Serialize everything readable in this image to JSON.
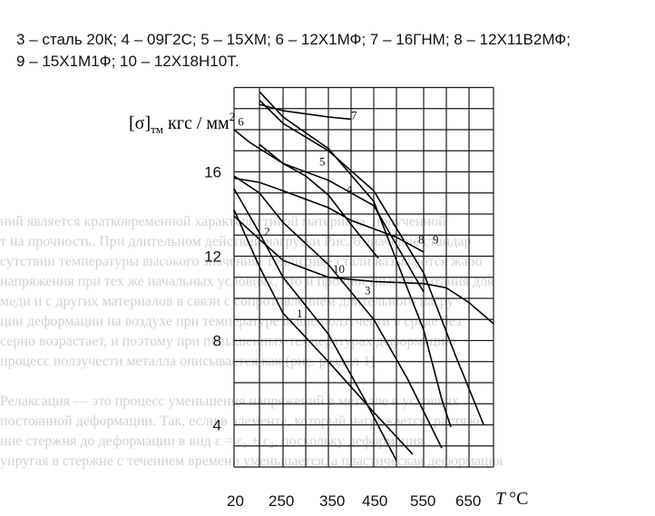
{
  "caption": {
    "line1": "3 – сталь 20К; 4 – 09Г2С; 5 – 15ХМ; 6 – 12Х1МФ; 7 – 16ГНМ; 8 – 12Х11В2МФ;",
    "line2": "9 – 15Х1М1Ф; 10 – 12Х18Н10Т."
  },
  "ghost_lines": [
    "ний является кратковременной характеристикой материала, полученной",
    "т на прочность. При длительном действии нагрузки Рис. 6 значение стандар",
    "сутствии температуры высокого значения. Теллитные стали называются жаро",
    "напряжения при тех же начальных условиях, что и прочностные испытания для",
    "меди и с других материалов в связи с сопротивлением длительного нагру",
    "ции деформации на воздухе при температуре выше ползучести в среде без",
    "серно возрастает, и поэтому при повышенных температурах деформацию",
    "процесс ползучести металла описывается как (рис. раздел 1)",
    "",
    "Релаксация — это процесс уменьшения напряжений в металле в условиях",
    "постоянной деформации. Так, если в элементе, который нагружается, растяже",
    "ние стержня до деформации в вид ε = ε₁ + ε₂, поскольку деформация",
    "упругая в стержне с течением времени уменьшается, а пластическая деформация",
    "",
    ""
  ],
  "chart_data": {
    "type": "line",
    "ylabel_symbol": "[σ]",
    "ylabel_sub": "тм",
    "ylabel_units_text": " кгс / мм",
    "ylabel_units_sup": "2",
    "xlabel": "T °C",
    "xlabel_letter": "T",
    "xlabel_unit": "°C",
    "x_ticks": [
      "20",
      "250",
      "350",
      "450",
      "550",
      "650"
    ],
    "y_ticks": [
      "4",
      "8",
      "12",
      "16"
    ],
    "x_grid_values": [
      20,
      150,
      250,
      300,
      350,
      400,
      450,
      500,
      550,
      600,
      650,
      700
    ],
    "y_grid_min": 2,
    "y_grid_max": 20,
    "y_grid_step": 1,
    "series": [
      {
        "name": "1",
        "label_at": [
          280,
          9.1
        ],
        "values": [
          [
            20,
            14.2
          ],
          [
            150,
            11.5
          ],
          [
            250,
            9.3
          ],
          [
            350,
            7.0
          ],
          [
            450,
            4.6
          ],
          [
            530,
            2.6
          ]
        ]
      },
      {
        "name": "2",
        "label_at": [
          170,
          13.0
        ],
        "values": [
          [
            20,
            15.2
          ],
          [
            150,
            13.1
          ],
          [
            250,
            11.0
          ],
          [
            350,
            8.3
          ],
          [
            430,
            5.2
          ],
          [
            500,
            2.3
          ]
        ]
      },
      {
        "name": "3",
        "label_at": [
          430,
          10.2
        ],
        "values": [
          [
            20,
            15.8
          ],
          [
            150,
            15.0
          ],
          [
            250,
            13.6
          ],
          [
            350,
            11.6
          ],
          [
            450,
            9.0
          ],
          [
            520,
            6.2
          ],
          [
            590,
            2.9
          ]
        ]
      },
      {
        "name": "4",
        "label_at": [
          390,
          15.0
        ],
        "values": [
          [
            150,
            17.3
          ],
          [
            250,
            16.4
          ],
          [
            300,
            15.8
          ],
          [
            350,
            14.9
          ],
          [
            400,
            13.5
          ],
          [
            460,
            11.9
          ]
        ]
      },
      {
        "name": "5",
        "label_at": [
          330,
          16.3
        ],
        "values": [
          [
            20,
            15.7
          ],
          [
            150,
            15.5
          ],
          [
            250,
            15.1
          ],
          [
            350,
            14.3
          ],
          [
            400,
            13.7
          ],
          [
            500,
            12.9
          ],
          [
            550,
            12.2
          ]
        ]
      },
      {
        "name": "6",
        "label_at": [
          40,
          18.2
        ],
        "values": [
          [
            20,
            18.0
          ],
          [
            100,
            17.4
          ],
          [
            250,
            16.4
          ],
          [
            350,
            15.6
          ],
          [
            450,
            14.4
          ],
          [
            550,
            10.3
          ]
        ]
      },
      {
        "name": "7",
        "label_at": [
          400,
          18.5
        ],
        "values": [
          [
            150,
            19.2
          ],
          [
            250,
            18.9
          ],
          [
            350,
            18.6
          ],
          [
            400,
            18.5
          ]
        ]
      },
      {
        "name": "8",
        "label_at": [
          540,
          12.6
        ],
        "values": [
          [
            150,
            19.8
          ],
          [
            250,
            18.6
          ],
          [
            350,
            17.1
          ],
          [
            450,
            14.6
          ],
          [
            500,
            11.8
          ],
          [
            550,
            8.5
          ],
          [
            590,
            5.2
          ],
          [
            610,
            3.9
          ]
        ]
      },
      {
        "name": "9",
        "label_at": [
          570,
          12.6
        ],
        "values": [
          [
            150,
            19.4
          ],
          [
            250,
            18.3
          ],
          [
            350,
            17.0
          ],
          [
            450,
            15.1
          ],
          [
            550,
            11.2
          ],
          [
            620,
            7.3
          ],
          [
            680,
            4.0
          ]
        ]
      },
      {
        "name": "10",
        "label_at": [
          360,
          11.2
        ],
        "values": [
          [
            20,
            13.9
          ],
          [
            150,
            12.8
          ],
          [
            250,
            11.8
          ],
          [
            350,
            11.0
          ],
          [
            450,
            10.8
          ],
          [
            550,
            10.7
          ],
          [
            600,
            10.5
          ],
          [
            650,
            9.8
          ],
          [
            700,
            8.8
          ]
        ]
      }
    ]
  }
}
